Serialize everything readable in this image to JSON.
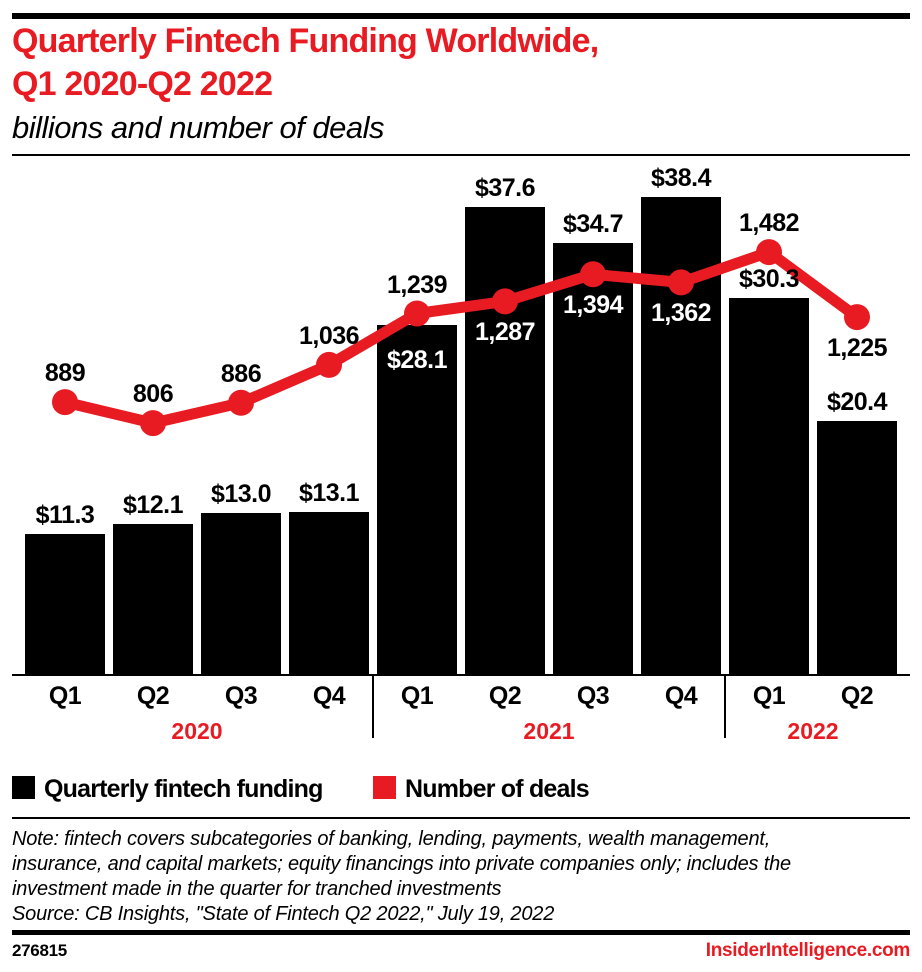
{
  "colors": {
    "accent_red": "#e81b22",
    "bar_black": "#000000",
    "label_white": "#ffffff"
  },
  "header": {
    "title_line1": "Quarterly Fintech Funding Worldwide,",
    "title_line2": "Q1 2020-Q2 2022",
    "subtitle": "billions and number of deals"
  },
  "chart_data": {
    "type": "bar+line",
    "title": "Quarterly Fintech Funding Worldwide, Q1 2020-Q2 2022",
    "subtitle": "billions and number of deals",
    "categories": [
      "Q1 2020",
      "Q2 2020",
      "Q3 2020",
      "Q4 2020",
      "Q1 2021",
      "Q2 2021",
      "Q3 2021",
      "Q4 2021",
      "Q1 2022",
      "Q2 2022"
    ],
    "quarter_ticks": [
      "Q1",
      "Q2",
      "Q3",
      "Q4",
      "Q1",
      "Q2",
      "Q3",
      "Q4",
      "Q1",
      "Q2"
    ],
    "year_groups": [
      {
        "label": "2020",
        "quarters": 4
      },
      {
        "label": "2021",
        "quarters": 4
      },
      {
        "label": "2022",
        "quarters": 2
      }
    ],
    "series": [
      {
        "name": "Quarterly fintech funding",
        "type": "bar",
        "unit": "USD billions",
        "color": "#000000",
        "values": [
          11.3,
          12.1,
          13.0,
          13.1,
          28.1,
          37.6,
          34.7,
          38.4,
          30.3,
          20.4
        ],
        "labels": [
          "$11.3",
          "$12.1",
          "$13.0",
          "$13.1",
          "$28.1",
          "$37.6",
          "$34.7",
          "$38.4",
          "$30.3",
          "$20.4"
        ],
        "label_placement": [
          "above",
          "above",
          "above",
          "above",
          "inside",
          "above",
          "above",
          "above",
          "above",
          "above"
        ],
        "label_color": [
          "black",
          "black",
          "black",
          "black",
          "white",
          "black",
          "black",
          "black",
          "black",
          "black"
        ]
      },
      {
        "name": "Number of deals",
        "type": "line",
        "unit": "deals",
        "color": "#e81b22",
        "values": [
          889,
          806,
          886,
          1036,
          1239,
          1287,
          1394,
          1362,
          1482,
          1225
        ],
        "labels": [
          "889",
          "806",
          "886",
          "1,036",
          "1,239",
          "1,287",
          "1,394",
          "1,362",
          "1,482",
          "1,225"
        ],
        "label_placement": [
          "above",
          "above",
          "above",
          "above",
          "above",
          "below",
          "below",
          "below",
          "above",
          "below"
        ],
        "label_color": [
          "black",
          "black",
          "black",
          "black",
          "black",
          "white",
          "white",
          "white",
          "black",
          "black"
        ]
      }
    ],
    "legend_position": "bottom",
    "grid": false
  },
  "legend": [
    {
      "label": "Quarterly fintech funding",
      "color": "#000000"
    },
    {
      "label": "Number of deals",
      "color": "#e81b22"
    }
  ],
  "note": {
    "lines": [
      "Note: fintech covers subcategories of banking, lending, payments, wealth management,",
      "insurance, and capital markets; equity financings into private companies only; includes the",
      "investment made in the quarter for tranched investments",
      "Source: CB Insights, \"State of Fintech Q2 2022,\" July 19, 2022"
    ]
  },
  "footer": {
    "chart_id": "276815",
    "site": "InsiderIntelligence.com"
  }
}
